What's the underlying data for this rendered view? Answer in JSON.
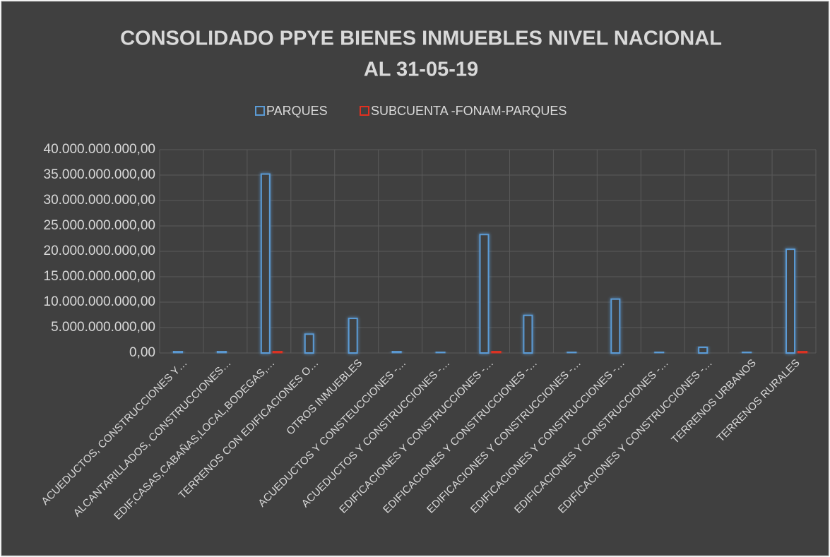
{
  "chart_data": {
    "type": "bar",
    "title": [
      "CONSOLIDADO PPYE BIENES INMUEBLES NIVEL NACIONAL",
      "AL 31-05-19"
    ],
    "categories": [
      "ACUEDUCTOS, CONSTRUCCIONES Y…",
      "ALCANTARILLADOS, CONSTRUCCIONES…",
      "EDIF,CASAS,CABAÑAS,LOCAL,BODEGAS,…",
      "TERRENOS CON EDIFICACIONES O…",
      "OTROS INMUEBLES",
      "ACUEDUCTOS Y CONSTEUCCIONES -…",
      "ACUEDUCTOS Y CONSTRUCCIONES -…",
      "EDIFICACIONES Y CONSTRUCCIONES -…",
      "EDIFICACIONES Y CONSTRUCCIONES -…",
      "EDIFICACIONES Y CONSTRUCCIONES -…",
      "EDIFICACIONES Y CONSTRUCCIONES -…",
      "EDIFICACIONES Y CONSTRUCCIONES -…",
      "EDIFICACIONES Y CONSTRUCCIONES -…",
      "TERRENOS URBANOS",
      "TERRENOS RURALES"
    ],
    "series": [
      {
        "name": "PARQUES",
        "color": "#5b9bd5",
        "values": [
          300000000,
          300000000,
          35200000000,
          3700000000,
          6800000000,
          300000000,
          200000000,
          23300000000,
          7400000000,
          200000000,
          10600000000,
          200000000,
          1100000000,
          200000000,
          20400000000
        ]
      },
      {
        "name": "SUBCUENTA -FONAM-PARQUES",
        "color": "#e03020",
        "values": [
          0,
          0,
          300000000,
          0,
          0,
          0,
          0,
          300000000,
          0,
          0,
          0,
          0,
          0,
          0,
          300000000
        ]
      }
    ],
    "ylim": [
      0,
      40000000000
    ],
    "yticks": [
      {
        "value": 0,
        "label": "0,00"
      },
      {
        "value": 5000000000,
        "label": "5.000.000.000,00"
      },
      {
        "value": 10000000000,
        "label": "10.000.000.000,00"
      },
      {
        "value": 15000000000,
        "label": "15.000.000.000,00"
      },
      {
        "value": 20000000000,
        "label": "20.000.000.000,00"
      },
      {
        "value": 25000000000,
        "label": "25.000.000.000,00"
      },
      {
        "value": 30000000000,
        "label": "30.000.000.000,00"
      },
      {
        "value": 35000000000,
        "label": "35.000.000.000,00"
      },
      {
        "value": 40000000000,
        "label": "40.000.000.000,00"
      }
    ],
    "grid": true,
    "legend": "top"
  }
}
